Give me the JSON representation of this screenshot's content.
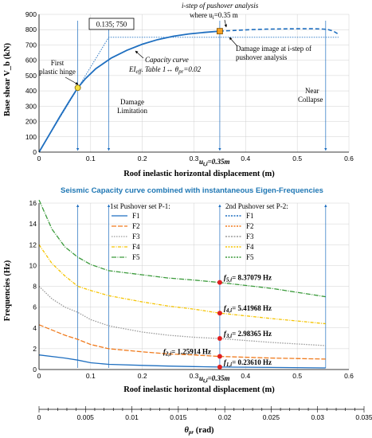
{
  "colors": {
    "blue": "#1f6fc0",
    "orange": "#f07a1c",
    "gray": "#9a9a9a",
    "yellow": "#f5c400",
    "green": "#3a9a3a",
    "marker_red": "#e02020",
    "marker_yellow": "#f5e040",
    "marker_orange": "#f5a020",
    "title_blue": "#1f77b4"
  },
  "chart_data": [
    {
      "type": "line",
      "xlabel": "Roof inelastic horizontal displacement (m)",
      "ylabel": "Base shear V_b (kN)",
      "xlim": [
        0,
        0.6
      ],
      "ylim": [
        0,
        900
      ],
      "x_ticks": [
        "0",
        "0.1",
        "0.2",
        "0.3",
        "0.4",
        "0.5",
        "0.6"
      ],
      "y_ticks": [
        "0",
        "100",
        "200",
        "300",
        "400",
        "500",
        "600",
        "700",
        "800",
        "900"
      ],
      "x_tick_values": [
        0,
        0.1,
        0.2,
        0.3,
        0.4,
        0.5,
        0.6
      ],
      "y_tick_values": [
        0,
        100,
        200,
        300,
        400,
        500,
        600,
        700,
        800,
        900
      ],
      "series": [
        {
          "x": [
            0,
            0.02,
            0.04,
            0.06,
            0.075,
            0.09,
            0.11,
            0.14,
            0.17,
            0.2,
            0.23,
            0.26,
            0.29,
            0.32,
            0.35
          ],
          "y": [
            0,
            115,
            230,
            340,
            420,
            480,
            545,
            615,
            665,
            705,
            735,
            757,
            772,
            782,
            790
          ]
        },
        {
          "x": [
            0.35,
            0.38,
            0.41,
            0.44,
            0.47,
            0.5,
            0.53,
            0.55,
            0.56,
            0.57,
            0.58
          ],
          "y": [
            790,
            795,
            800,
            803,
            805,
            806,
            806,
            804,
            800,
            790,
            770
          ]
        }
      ],
      "bilinear": {
        "x": [
          0,
          0.135,
          0.58
        ],
        "y": [
          0,
          750,
          750
        ]
      },
      "vlines": [
        0.075,
        0.135,
        0.35,
        0.555
      ],
      "point_yield": [
        0.075,
        420
      ],
      "point_step": [
        0.35,
        790
      ],
      "annotations": {
        "box": "0.135; 750",
        "step_line1": "i-step of pushover analysis",
        "step_line2": "where u",
        "step_line2_sub": "i",
        "step_line2_end": "=0.35 m",
        "first_hinge_1": "First",
        "first_hinge_2": "plastic hinge",
        "capacity_1": "Capacity curve",
        "capacity_2": "EI",
        "capacity_2_sub": "eff",
        "capacity_2_end": ". Table 1↔ θ",
        "capacity_2_sub2": "pr",
        "capacity_2_end2": "=0.02",
        "damage_img_1": "Damage image at i-step of",
        "damage_img_2": "pushover analysis",
        "dl_1": "Damage",
        "dl_2": "Limitation",
        "nc_1": "Near",
        "nc_2": "Collapse",
        "u_label": "u",
        "u_label_sub": "t,i",
        "u_label_end": "=0.35m"
      }
    },
    {
      "type": "line",
      "title": "Seismic Capacity curve combined with instantaneous Eigen-Frequencies",
      "xlabel": "Roof inelastic horizontal displacement (m)",
      "ylabel": "Frequencies (Hz)",
      "xlim": [
        0,
        0.6
      ],
      "ylim": [
        0,
        16
      ],
      "x_ticks": [
        "0",
        "0.1",
        "0.2",
        "0.3",
        "0.4",
        "0.5",
        "0.6"
      ],
      "y_ticks": [
        "0",
        "2",
        "4",
        "6",
        "8",
        "10",
        "12",
        "14",
        "16"
      ],
      "x_tick_values": [
        0,
        0.1,
        0.2,
        0.3,
        0.4,
        0.5,
        0.6
      ],
      "y_tick_values": [
        0,
        2,
        4,
        6,
        8,
        10,
        12,
        14,
        16
      ],
      "vlines": [
        0.075,
        0.135,
        0.35,
        0.555
      ],
      "secondary_x": {
        "label": "θ",
        "label_sub": "pr",
        "label_end": " (rad)",
        "xlim": [
          0,
          0.035
        ],
        "ticks": [
          "0",
          "0.005",
          "0.01",
          "0.015",
          "0.02",
          "0.025",
          "0.03",
          "0.035"
        ],
        "tick_values": [
          0,
          0.005,
          0.01,
          0.015,
          0.02,
          0.025,
          0.03,
          0.035
        ]
      },
      "legend_set1_title": "1st Pushover set P-1:",
      "legend_set2_title": "2nd Pushover set P-2:",
      "series": [
        {
          "name": "F1",
          "x": [
            0,
            0.05,
            0.075,
            0.1,
            0.135,
            0.2,
            0.25,
            0.3,
            0.35,
            0.45,
            0.555
          ],
          "y": [
            1.4,
            1.1,
            0.9,
            0.65,
            0.5,
            0.4,
            0.33,
            0.28,
            0.236,
            0.2,
            0.15
          ]
        },
        {
          "name": "F2",
          "x": [
            0,
            0.05,
            0.075,
            0.1,
            0.135,
            0.2,
            0.25,
            0.3,
            0.35,
            0.45,
            0.555
          ],
          "y": [
            4.3,
            3.3,
            2.9,
            2.4,
            2.0,
            1.7,
            1.5,
            1.4,
            1.259,
            1.1,
            1.0
          ]
        },
        {
          "name": "F3",
          "x": [
            0,
            0.025,
            0.05,
            0.075,
            0.1,
            0.135,
            0.2,
            0.25,
            0.3,
            0.35,
            0.45,
            0.555
          ],
          "y": [
            8.0,
            6.8,
            6.0,
            5.5,
            4.8,
            4.2,
            3.6,
            3.3,
            3.1,
            2.98,
            2.6,
            2.3
          ]
        },
        {
          "name": "F4",
          "x": [
            0,
            0.025,
            0.05,
            0.075,
            0.1,
            0.135,
            0.2,
            0.25,
            0.3,
            0.35,
            0.45,
            0.555
          ],
          "y": [
            12.0,
            10.2,
            9.0,
            8.0,
            7.6,
            7.1,
            6.5,
            6.1,
            5.8,
            5.42,
            4.9,
            4.4
          ]
        },
        {
          "name": "F5",
          "x": [
            0,
            0.025,
            0.05,
            0.075,
            0.1,
            0.135,
            0.2,
            0.25,
            0.3,
            0.35,
            0.45,
            0.555
          ],
          "y": [
            16.3,
            13.5,
            11.8,
            10.8,
            10.1,
            9.5,
            9.1,
            8.8,
            8.6,
            8.37,
            7.8,
            7.0
          ]
        }
      ],
      "markers": [
        {
          "x": 0.35,
          "y": 8.37079,
          "label": "f",
          "sub": "5,i",
          "end": "= 8.37079  Hz"
        },
        {
          "x": 0.35,
          "y": 5.41968,
          "label": "f",
          "sub": "4,i",
          "end": "= 5.41968  Hz"
        },
        {
          "x": 0.35,
          "y": 2.98365,
          "label": "f",
          "sub": "3,i",
          "end": "= 2.98365  Hz"
        },
        {
          "x": 0.35,
          "y": 1.25914,
          "label": "f",
          "sub": "2,i",
          "end": "= 1.25914  Hz"
        },
        {
          "x": 0.35,
          "y": 0.2361,
          "label": "f",
          "sub": "1,i",
          "end": "= 0.23610  Hz"
        }
      ],
      "u_label": "u",
      "u_label_sub": "t,i",
      "u_label_end": "=0.35m"
    }
  ]
}
